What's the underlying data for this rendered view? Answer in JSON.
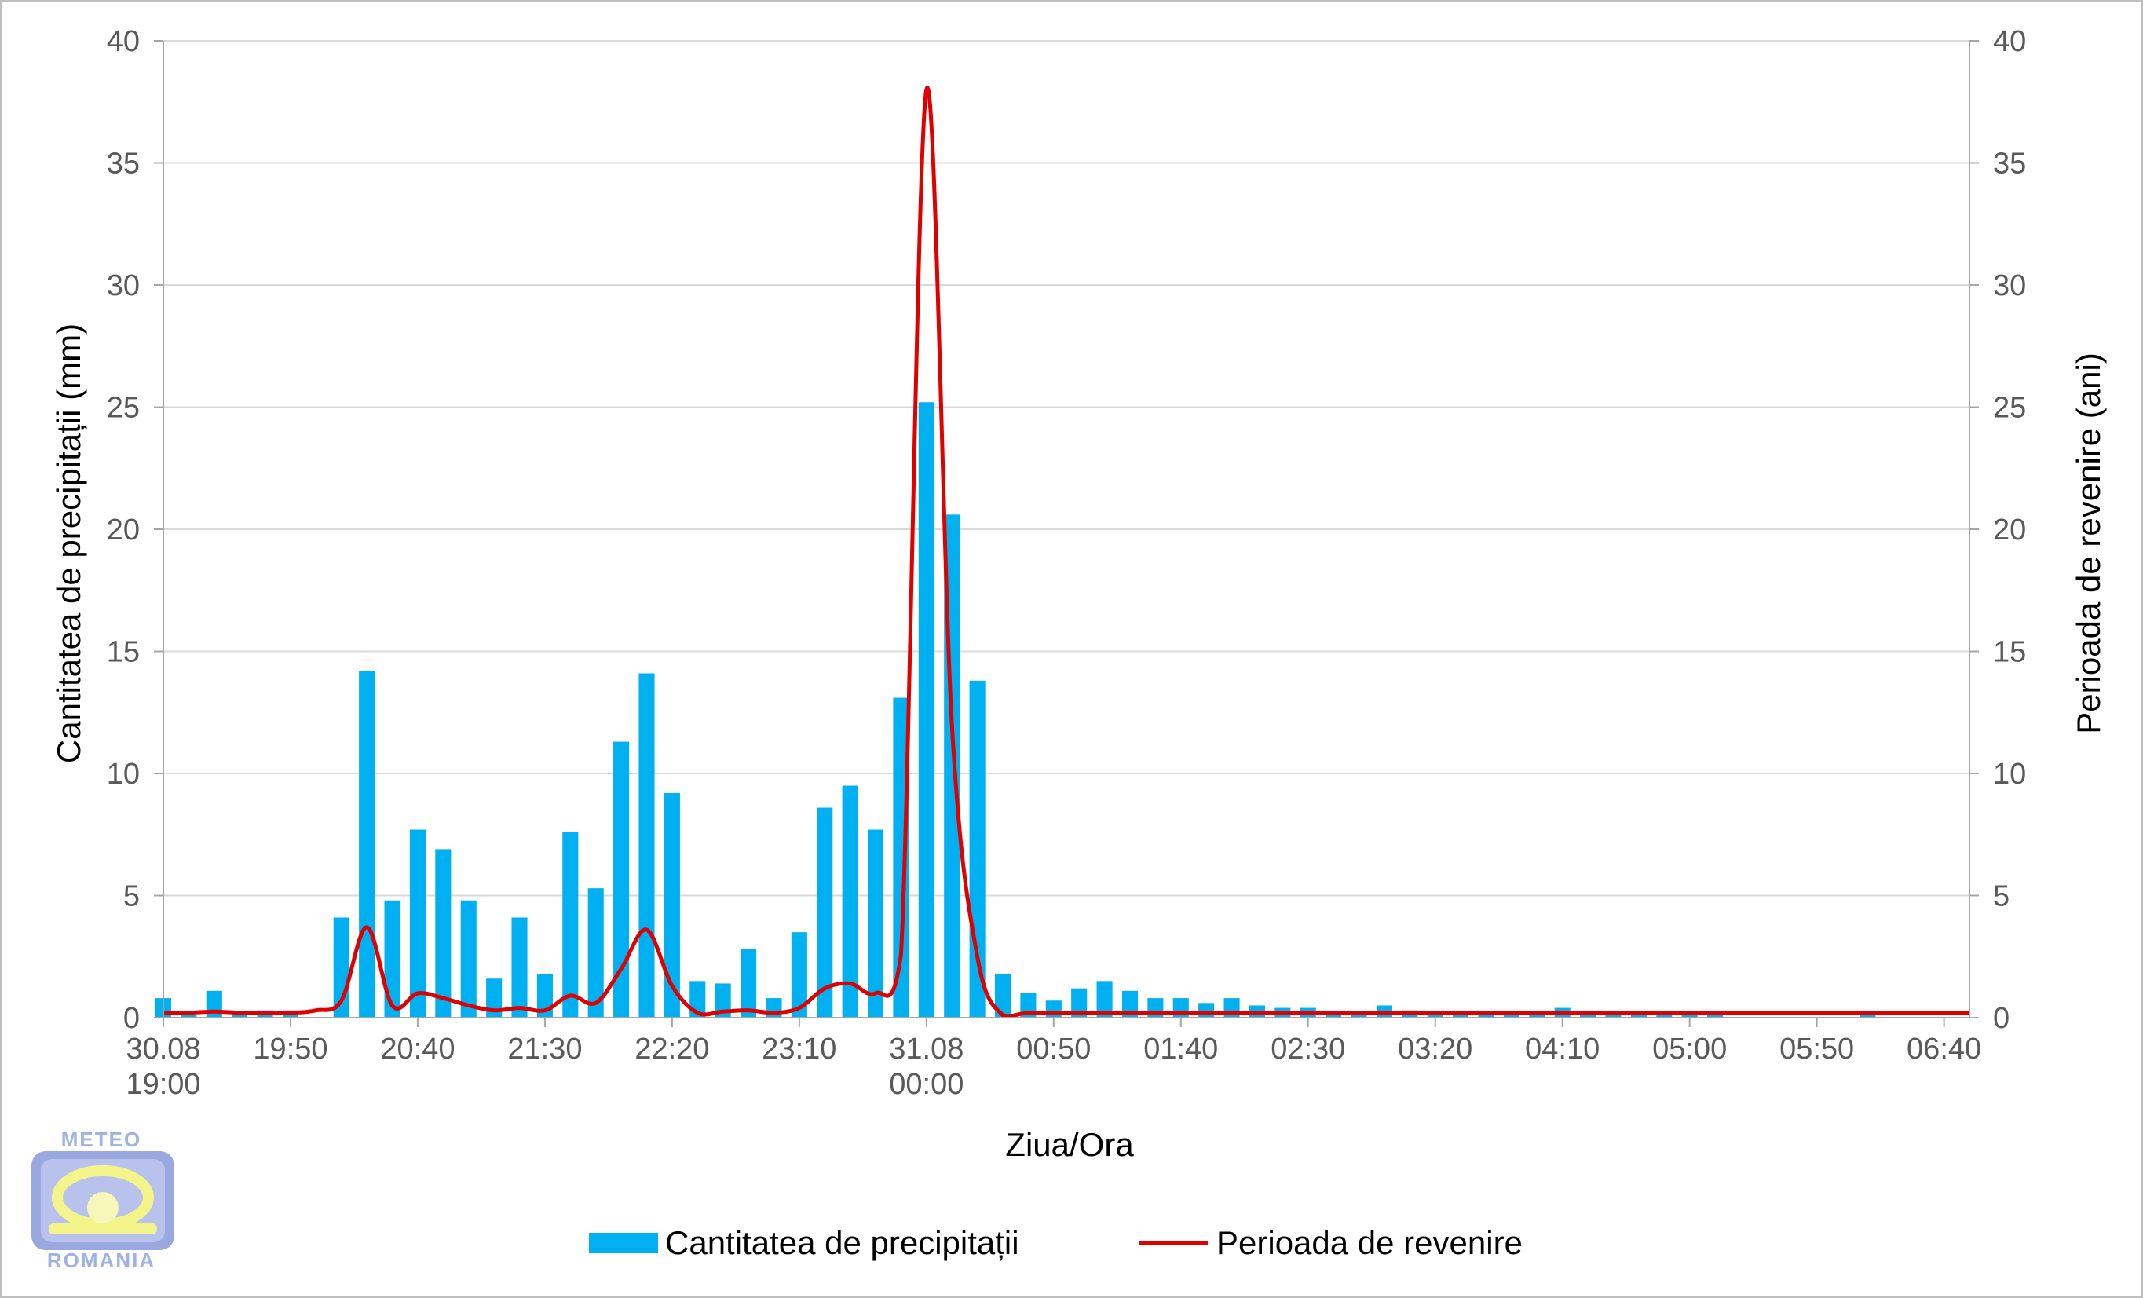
{
  "chart_data": {
    "type": "bar",
    "xlabel": "Ziua/Ora",
    "ylabel_left": "Cantitatea de precipitații (mm)",
    "ylabel_right": "Perioada de revenire (ani)",
    "ylim_left": [
      0,
      40
    ],
    "ylim_right": [
      0,
      40
    ],
    "yticks": [
      0,
      5,
      10,
      15,
      20,
      25,
      30,
      35,
      40
    ],
    "x_tick_labels": [
      {
        "line1": "30.08",
        "line2": "19:00",
        "index": 0
      },
      {
        "line1": "19:50",
        "line2": "",
        "index": 5
      },
      {
        "line1": "20:40",
        "line2": "",
        "index": 10
      },
      {
        "line1": "21:30",
        "line2": "",
        "index": 15
      },
      {
        "line1": "22:20",
        "line2": "",
        "index": 20
      },
      {
        "line1": "23:10",
        "line2": "",
        "index": 25
      },
      {
        "line1": "31.08",
        "line2": "00:00",
        "index": 30
      },
      {
        "line1": "00:50",
        "line2": "",
        "index": 35
      },
      {
        "line1": "01:40",
        "line2": "",
        "index": 40
      },
      {
        "line1": "02:30",
        "line2": "",
        "index": 45
      },
      {
        "line1": "03:20",
        "line2": "",
        "index": 50
      },
      {
        "line1": "04:10",
        "line2": "",
        "index": 55
      },
      {
        "line1": "05:00",
        "line2": "",
        "index": 60
      },
      {
        "line1": "05:50",
        "line2": "",
        "index": 65
      },
      {
        "line1": "06:40",
        "line2": "",
        "index": 70
      }
    ],
    "grid": true,
    "legend_position": "bottom",
    "series": [
      {
        "name": "Cantitatea de precipitații",
        "type": "bar",
        "axis": "left",
        "color": "#00b0f0",
        "values": [
          0.8,
          0.1,
          1.1,
          0.2,
          0.3,
          0.3,
          0.0,
          4.1,
          14.2,
          4.8,
          7.7,
          6.9,
          4.8,
          1.6,
          4.1,
          1.8,
          7.6,
          5.3,
          11.3,
          14.1,
          9.2,
          1.5,
          1.4,
          2.8,
          0.8,
          3.5,
          8.6,
          9.5,
          7.7,
          13.1,
          25.2,
          20.6,
          13.8,
          1.8,
          1.0,
          0.7,
          1.2,
          1.5,
          1.1,
          0.8,
          0.8,
          0.6,
          0.8,
          0.5,
          0.4,
          0.4,
          0.2,
          0.1,
          0.5,
          0.3,
          0.1,
          0.1,
          0.1,
          0.1,
          0.1,
          0.4,
          0.1,
          0.1,
          0.1,
          0.1,
          0.1,
          0.1,
          0.0,
          0.0,
          0.0,
          0.0,
          0.0,
          0.1,
          0.0,
          0.0,
          0.0,
          0.0
        ]
      },
      {
        "name": "Perioada de revenire",
        "type": "line",
        "axis": "right",
        "color": "#e00000",
        "values": [
          0.2,
          0.2,
          0.25,
          0.2,
          0.2,
          0.2,
          0.3,
          0.7,
          3.7,
          0.5,
          1.0,
          0.8,
          0.5,
          0.3,
          0.4,
          0.3,
          0.9,
          0.6,
          2.0,
          3.6,
          1.3,
          0.2,
          0.25,
          0.3,
          0.2,
          0.4,
          1.2,
          1.4,
          1.0,
          2.6,
          38.0,
          12.0,
          2.5,
          0.1,
          0.2,
          0.2,
          0.2,
          0.2,
          0.2,
          0.2,
          0.2,
          0.2,
          0.2,
          0.2,
          0.2,
          0.2,
          0.2,
          0.2,
          0.2,
          0.2,
          0.2,
          0.2,
          0.2,
          0.2,
          0.2,
          0.2,
          0.2,
          0.2,
          0.2,
          0.2,
          0.2,
          0.2,
          0.2,
          0.2,
          0.2,
          0.2,
          0.2,
          0.2,
          0.2,
          0.2,
          0.2,
          0.2
        ]
      }
    ]
  },
  "logo": {
    "top_text": "METEO",
    "bottom_text": "ROMANIA"
  }
}
